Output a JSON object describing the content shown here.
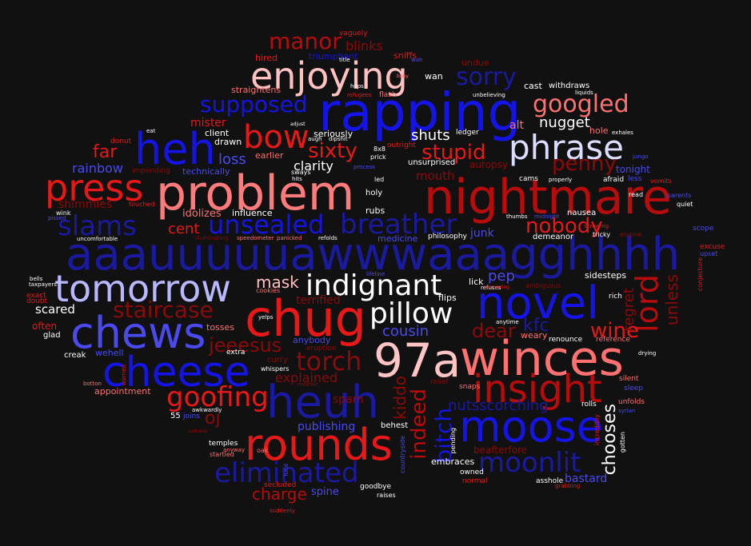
{
  "palette": {
    "background": "#111111",
    "dark_red": "#8b0a0a",
    "red": "#e81818",
    "light_red": "#ff7070",
    "pink": "#ffc0c0",
    "dark_blue": "#1a1aa0",
    "blue": "#1414e6",
    "light_blue": "#7070ff",
    "pale_blue": "#c8c8ff",
    "white": "#ffffff"
  },
  "words": [
    {
      "text": "aaauuuuuawwwaaagghhhh",
      "color": "#1a1aa0"
    },
    {
      "text": "rapping",
      "color": "#1414e6"
    },
    {
      "text": "problem",
      "color": "#ff7a7a"
    },
    {
      "text": "nightmare",
      "color": "#b80c0c"
    },
    {
      "text": "chug",
      "color": "#e81818"
    },
    {
      "text": "winces",
      "color": "#ff7070"
    },
    {
      "text": "97a",
      "color": "#ffc4c4"
    },
    {
      "text": "tomorrow",
      "color": "#b8b8ff"
    },
    {
      "text": "chews",
      "color": "#4a4af0"
    },
    {
      "text": "cheese",
      "color": "#1414e6"
    },
    {
      "text": "heuh",
      "color": "#1a1aa0"
    },
    {
      "text": "rounds",
      "color": "#e81818"
    },
    {
      "text": "moose",
      "color": "#1414e6"
    },
    {
      "text": "novel",
      "color": "#1414e6"
    },
    {
      "text": "insight",
      "color": "#b80c0c"
    },
    {
      "text": "enjoying",
      "color": "#ffc0c0"
    },
    {
      "text": "heh",
      "color": "#1414e6"
    },
    {
      "text": "press",
      "color": "#e81818"
    },
    {
      "text": "indignant",
      "color": "#ffffff"
    },
    {
      "text": "phrase",
      "color": "#dcdcff"
    },
    {
      "text": "pillow",
      "color": "#ffffff"
    },
    {
      "text": "bow",
      "color": "#e81818"
    },
    {
      "text": "unsealed",
      "color": "#1414e6"
    },
    {
      "text": "slams",
      "color": "#1a1aa0"
    },
    {
      "text": "moonlit",
      "color": "#1a1aa0"
    },
    {
      "text": "eliminated",
      "color": "#1a1aa0"
    },
    {
      "text": "goofing",
      "color": "#e81818"
    },
    {
      "text": "staircase",
      "color": "#8b0a0a"
    },
    {
      "text": "torch",
      "color": "#8b0a0a"
    },
    {
      "text": "lord",
      "color": "#b80c0c"
    },
    {
      "text": "breather",
      "color": "#1a1aa0"
    },
    {
      "text": "googled",
      "color": "#ff7070"
    },
    {
      "text": "sorry",
      "color": "#1a1aa0"
    },
    {
      "text": "manor",
      "color": "#b80c0c"
    },
    {
      "text": "supposed",
      "color": "#1414e6"
    },
    {
      "text": "sixty",
      "color": "#e81818"
    },
    {
      "text": "stupid",
      "color": "#e81818"
    },
    {
      "text": "penny",
      "color": "#8b0a0a"
    },
    {
      "text": "nobody",
      "color": "#e81818"
    },
    {
      "text": "jeeesus",
      "color": "#8b0a0a"
    },
    {
      "text": "bitch",
      "color": "#1414e6"
    },
    {
      "text": "indeed",
      "color": "#b80c0c"
    },
    {
      "text": "chooses",
      "color": "#ffffff"
    },
    {
      "text": "wine",
      "color": "#e81818"
    },
    {
      "text": "dear",
      "color": "#8b0a0a"
    },
    {
      "text": "mask",
      "color": "#ffc0c0"
    },
    {
      "text": "oj",
      "color": "#8b0a0a"
    },
    {
      "text": "charge",
      "color": "#b80c0c"
    },
    {
      "text": "kfc",
      "color": "#1a1aa0"
    },
    {
      "text": "nutsscorching",
      "color": "#1a1aa0"
    },
    {
      "text": "kiddo",
      "color": "#8b0a0a"
    },
    {
      "text": "unless",
      "color": "#8b0a0a"
    },
    {
      "text": "regret",
      "color": "#8b0a0a"
    },
    {
      "text": "far",
      "color": "#e81818"
    },
    {
      "text": "loss",
      "color": "#4a4af0"
    },
    {
      "text": "clarity",
      "color": "#ffffff"
    },
    {
      "text": "shuts",
      "color": "#ffffff"
    },
    {
      "text": "nugget",
      "color": "#ffffff"
    },
    {
      "text": "pep",
      "color": "#4a4af0"
    },
    {
      "text": "cent",
      "color": "#e81818"
    },
    {
      "text": "rainbow",
      "color": "#4a4af0"
    },
    {
      "text": "shimmies",
      "color": "#8b0a0a"
    },
    {
      "text": "scared",
      "color": "#ffffff"
    },
    {
      "text": "cousin",
      "color": "#4a4af0"
    },
    {
      "text": "terrified",
      "color": "#8b0a0a"
    },
    {
      "text": "explained",
      "color": "#8b0a0a"
    },
    {
      "text": "publishing",
      "color": "#4a4af0"
    },
    {
      "text": "spine",
      "color": "#4a4af0"
    },
    {
      "text": "bastard",
      "color": "#4a4af0"
    },
    {
      "text": "mouth",
      "color": "#8b0a0a"
    },
    {
      "text": "tonight",
      "color": "#4a4af0"
    },
    {
      "text": "alt",
      "color": "#ff7070"
    },
    {
      "text": "mister",
      "color": "#e81818"
    },
    {
      "text": "idolizes",
      "color": "#ff7070"
    },
    {
      "text": "junk",
      "color": "#4a4af0"
    },
    {
      "text": "blinks",
      "color": "#8b0a0a"
    },
    {
      "text": "spam",
      "color": "#8b0a0a"
    },
    {
      "text": "beafterfore",
      "color": "#8b0a0a"
    },
    {
      "text": "autopsy",
      "color": "#8b0a0a"
    },
    {
      "text": "appointment",
      "color": "#ff7070"
    },
    {
      "text": "wehell",
      "color": "#4a4af0"
    },
    {
      "text": "often",
      "color": "#e81818"
    },
    {
      "text": "straightens",
      "color": "#ff7070"
    },
    {
      "text": "earlier",
      "color": "#ff7070"
    },
    {
      "text": "drawn",
      "color": "#ffffff"
    },
    {
      "text": "client",
      "color": "#ffffff"
    },
    {
      "text": "technically",
      "color": "#4a4af0"
    },
    {
      "text": "influence",
      "color": "#ffffff"
    },
    {
      "text": "seriously",
      "color": "#ffffff"
    },
    {
      "text": "medicine",
      "color": "#4a4af0"
    },
    {
      "text": "philosophy",
      "color": "#ffffff"
    },
    {
      "text": "rubs",
      "color": "#ffffff"
    },
    {
      "text": "holy",
      "color": "#ffffff"
    },
    {
      "text": "unsurprised",
      "color": "#ffffff"
    },
    {
      "text": "ledger",
      "color": "#ffffff"
    },
    {
      "text": "cast",
      "color": "#ffffff"
    },
    {
      "text": "withdraws",
      "color": "#ffffff"
    },
    {
      "text": "hole",
      "color": "#ff7070"
    },
    {
      "text": "wan",
      "color": "#ffffff"
    },
    {
      "text": "undue",
      "color": "#8b0a0a"
    },
    {
      "text": "hired",
      "color": "#e81818"
    },
    {
      "text": "triumphant",
      "color": "#1414e6"
    },
    {
      "text": "sniffs",
      "color": "#e81818"
    },
    {
      "text": "vaguely",
      "color": "#e81818"
    },
    {
      "text": "flash",
      "color": "#ff7070"
    },
    {
      "text": "nausea",
      "color": "#ffffff"
    },
    {
      "text": "demeanor",
      "color": "#ffffff"
    },
    {
      "text": "lick",
      "color": "#ffffff"
    },
    {
      "text": "flips",
      "color": "#ffffff"
    },
    {
      "text": "sidesteps",
      "color": "#ffffff"
    },
    {
      "text": "weary",
      "color": "#ff7070"
    },
    {
      "text": "renounce",
      "color": "#ffffff"
    },
    {
      "text": "reference",
      "color": "#ff7070"
    },
    {
      "text": "silent",
      "color": "#ff7070"
    },
    {
      "text": "sleep",
      "color": "#4a4af0"
    },
    {
      "text": "unfolds",
      "color": "#ff7070"
    },
    {
      "text": "rolls",
      "color": "#ffffff"
    },
    {
      "text": "embraces",
      "color": "#ffffff"
    },
    {
      "text": "owned",
      "color": "#ffffff"
    },
    {
      "text": "normal",
      "color": "#e81818"
    },
    {
      "text": "goodbye",
      "color": "#ffffff"
    },
    {
      "text": "raises",
      "color": "#ffffff"
    },
    {
      "text": "asshole",
      "color": "#ffffff"
    },
    {
      "text": "behest",
      "color": "#ffffff"
    },
    {
      "text": "relief",
      "color": "#8b0a0a"
    },
    {
      "text": "snaps",
      "color": "#ff7070"
    },
    {
      "text": "creak",
      "color": "#ffffff"
    },
    {
      "text": "glad",
      "color": "#ffffff"
    },
    {
      "text": "extra",
      "color": "#ffffff"
    },
    {
      "text": "tosses",
      "color": "#ff7070"
    },
    {
      "text": "curry",
      "color": "#8b0a0a"
    },
    {
      "text": "anybody",
      "color": "#4a4af0"
    },
    {
      "text": "whispers",
      "color": "#ffffff"
    },
    {
      "text": "eruption",
      "color": "#8b0a0a"
    },
    {
      "text": "temples",
      "color": "#ffffff"
    },
    {
      "text": "secluded",
      "color": "#e81818"
    },
    {
      "text": "joins",
      "color": "#4a4af0"
    },
    {
      "text": "55",
      "color": "#ffffff"
    },
    {
      "text": "exact",
      "color": "#e81818"
    },
    {
      "text": "doubt",
      "color": "#e81818"
    },
    {
      "text": "excuse",
      "color": "#e81818"
    },
    {
      "text": "upset",
      "color": "#4a4af0"
    },
    {
      "text": "quiet",
      "color": "#ffffff"
    },
    {
      "text": "scope",
      "color": "#4a4af0"
    },
    {
      "text": "parents",
      "color": "#4a4af0"
    },
    {
      "text": "read",
      "color": "#ffffff"
    },
    {
      "text": "afraid",
      "color": "#ffffff"
    },
    {
      "text": "less",
      "color": "#4a4af0"
    },
    {
      "text": "vomits",
      "color": "#e81818"
    },
    {
      "text": "cams",
      "color": "#ffffff"
    },
    {
      "text": "outright",
      "color": "#e81818"
    },
    {
      "text": "8x8",
      "color": "#ffffff"
    },
    {
      "text": "prick",
      "color": "#ffffff"
    },
    {
      "text": "donut",
      "color": "#e81818"
    },
    {
      "text": "wink",
      "color": "#ffffff"
    },
    {
      "text": "touched",
      "color": "#e81818"
    },
    {
      "text": "uncomfortable",
      "color": "#ffffff"
    },
    {
      "text": "pissed",
      "color": "#4a4af0"
    },
    {
      "text": "impending",
      "color": "#8b0a0a"
    },
    {
      "text": "panicked",
      "color": "#ff7070"
    },
    {
      "text": "refolds",
      "color": "#ffffff"
    },
    {
      "text": "illuminating",
      "color": "#8b0a0a"
    },
    {
      "text": "speedometer",
      "color": "#ff7070"
    },
    {
      "text": "bells",
      "color": "#ffffff"
    },
    {
      "text": "taxpayers",
      "color": "#ffffff"
    },
    {
      "text": "cookies",
      "color": "#ff7070"
    },
    {
      "text": "ambiguous",
      "color": "#8b0a0a"
    },
    {
      "text": "rich",
      "color": "#ffffff"
    },
    {
      "text": "drying",
      "color": "#ffffff"
    },
    {
      "text": "anytime",
      "color": "#ffffff"
    },
    {
      "text": "engine",
      "color": "#8b0a0a"
    },
    {
      "text": "tricky",
      "color": "#ffffff"
    },
    {
      "text": "properly",
      "color": "#ffffff"
    },
    {
      "text": "screwing",
      "color": "#e81818"
    },
    {
      "text": "thumbs",
      "color": "#ffffff"
    },
    {
      "text": "midnight",
      "color": "#4a4af0"
    },
    {
      "text": "fund",
      "color": "#4a4af0"
    },
    {
      "text": "gotten",
      "color": "#ffffff"
    },
    {
      "text": "pending",
      "color": "#ffffff"
    },
    {
      "text": "refuses",
      "color": "#ffffff"
    },
    {
      "text": "sways",
      "color": "#ffffff"
    },
    {
      "text": "hits",
      "color": "#ffffff"
    },
    {
      "text": "led",
      "color": "#ffffff"
    },
    {
      "text": "eat",
      "color": "#ffffff"
    },
    {
      "text": "augh",
      "color": "#ffffff"
    },
    {
      "text": "dipshit",
      "color": "#ffffff"
    },
    {
      "text": "process",
      "color": "#4a4af0"
    },
    {
      "text": "title",
      "color": "#ffffff"
    },
    {
      "text": "hops",
      "color": "#ffffff"
    },
    {
      "text": "refugees",
      "color": "#e81818"
    },
    {
      "text": "unbelieving",
      "color": "#ffffff"
    },
    {
      "text": "liquids",
      "color": "#ffffff"
    },
    {
      "text": "exhales",
      "color": "#ffffff"
    },
    {
      "text": "jungo",
      "color": "#4a4af0"
    },
    {
      "text": "startled",
      "color": "#ff7070"
    },
    {
      "text": "anyway",
      "color": "#ff7070"
    },
    {
      "text": "oak",
      "color": "#ff7070"
    },
    {
      "text": "suddenly",
      "color": "#e81818"
    },
    {
      "text": "yelps",
      "color": "#ffffff"
    },
    {
      "text": "mother",
      "color": "#8b0a0a"
    },
    {
      "text": "adjust",
      "color": "#ffffff"
    },
    {
      "text": "wah",
      "color": "#4a4af0"
    },
    {
      "text": "baby",
      "color": "#ff7070"
    },
    {
      "text": "conjecture",
      "color": "#e81818"
    },
    {
      "text": "incredibly",
      "color": "#e81818"
    },
    {
      "text": "syrian",
      "color": "#4a4af0"
    },
    {
      "text": "grabbing",
      "color": "#e81818"
    },
    {
      "text": "countryside",
      "color": "#4a4af0"
    },
    {
      "text": "botton",
      "color": "#ff7070"
    },
    {
      "text": "worried",
      "color": "#e81818"
    },
    {
      "text": "sadness",
      "color": "#8b0a0a"
    },
    {
      "text": "awkwardly",
      "color": "#ffffff"
    },
    {
      "text": "lifeline",
      "color": "#4a4af0"
    },
    {
      "text": "recovering",
      "color": "#e81818"
    }
  ]
}
